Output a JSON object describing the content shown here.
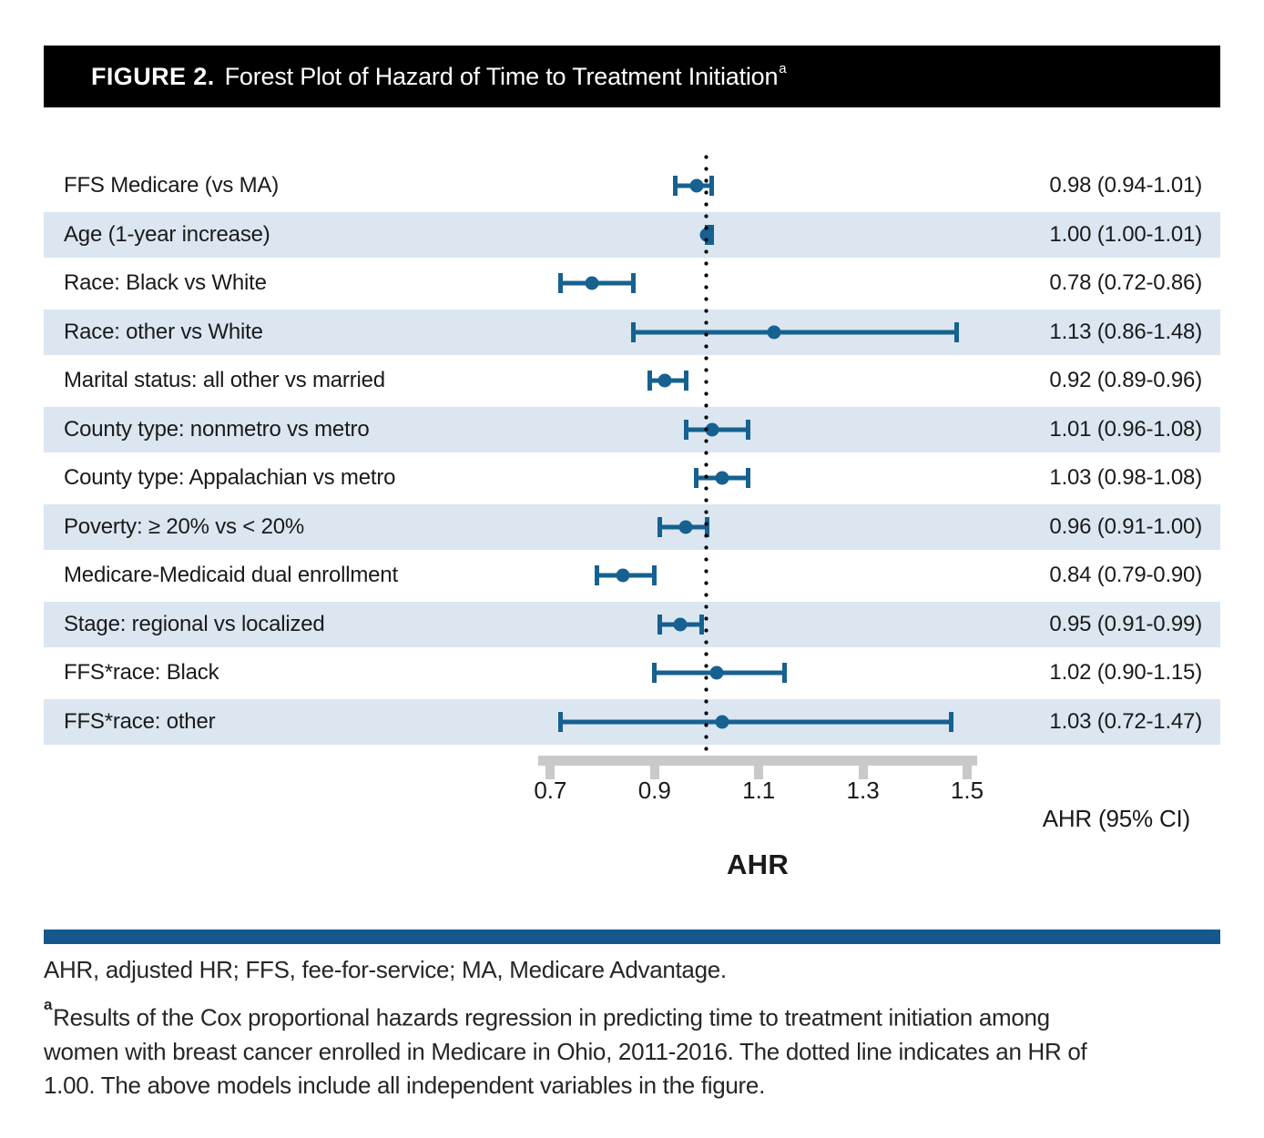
{
  "figure": {
    "label": "FIGURE 2.",
    "title": "Forest Plot of Hazard of Time to Treatment Initiation",
    "title_superscript": "a"
  },
  "chart_data": {
    "type": "forest",
    "title": "Forest Plot of Hazard of Time to Treatment Initiation",
    "xlabel": "AHR",
    "axis_note": "AHR (95% CI)",
    "axis_ticks": [
      0.7,
      0.9,
      1.1,
      1.3,
      1.5
    ],
    "xlim": [
      0.62,
      1.55
    ],
    "reference_line": 1.0,
    "grid": false,
    "rows": [
      {
        "label": "FFS Medicare (vs MA)",
        "est": 0.98,
        "lo": 0.94,
        "hi": 1.01,
        "text": "0.98 (0.94-1.01)"
      },
      {
        "label": "Age (1-year increase)",
        "est": 1.0,
        "lo": 1.0,
        "hi": 1.01,
        "text": "1.00 (1.00-1.01)"
      },
      {
        "label": "Race: Black vs White",
        "est": 0.78,
        "lo": 0.72,
        "hi": 0.86,
        "text": "0.78 (0.72-0.86)"
      },
      {
        "label": "Race: other vs White",
        "est": 1.13,
        "lo": 0.86,
        "hi": 1.48,
        "text": "1.13 (0.86-1.48)"
      },
      {
        "label": "Marital status: all other vs married",
        "est": 0.92,
        "lo": 0.89,
        "hi": 0.96,
        "text": "0.92 (0.89-0.96)"
      },
      {
        "label": "County type: nonmetro vs metro",
        "est": 1.01,
        "lo": 0.96,
        "hi": 1.08,
        "text": "1.01 (0.96-1.08)"
      },
      {
        "label": "County type: Appalachian vs metro",
        "est": 1.03,
        "lo": 0.98,
        "hi": 1.08,
        "text": "1.03 (0.98-1.08)"
      },
      {
        "label": "Poverty: ≥ 20% vs < 20%",
        "est": 0.96,
        "lo": 0.91,
        "hi": 1.0,
        "text": "0.96 (0.91-1.00)"
      },
      {
        "label": "Medicare-Medicaid dual enrollment",
        "est": 0.84,
        "lo": 0.79,
        "hi": 0.9,
        "text": "0.84 (0.79-0.90)"
      },
      {
        "label": "Stage: regional vs localized",
        "est": 0.95,
        "lo": 0.91,
        "hi": 0.99,
        "text": "0.95 (0.91-0.99)"
      },
      {
        "label": "FFS*race: Black",
        "est": 1.02,
        "lo": 0.9,
        "hi": 1.15,
        "text": "1.02 (0.90-1.15)"
      },
      {
        "label": "FFS*race: other",
        "est": 1.03,
        "lo": 0.72,
        "hi": 1.47,
        "text": "1.03 (0.72-1.47)"
      }
    ]
  },
  "footer": {
    "abbreviations": "AHR, adjusted HR; FFS, fee-for-service; MA, Medicare Advantage.",
    "footnote_marker": "a",
    "footnote_lines": [
      "Results of the Cox proportional hazards regression in predicting time to treatment initiation among",
      "women with breast cancer enrolled in Medicare in Ohio, 2011-2016. The dotted line indicates an HR of",
      "1.00. The above models include all independent variables in the figure."
    ]
  },
  "colors": {
    "marker_blue": "#16618f",
    "band_blue": "#dbe6f1",
    "axis_gray": "#c9c9c9",
    "divider_blue": "#15598c",
    "title_bg": "#000000",
    "title_fg": "#ffffff",
    "text": "#1a1a1a"
  }
}
